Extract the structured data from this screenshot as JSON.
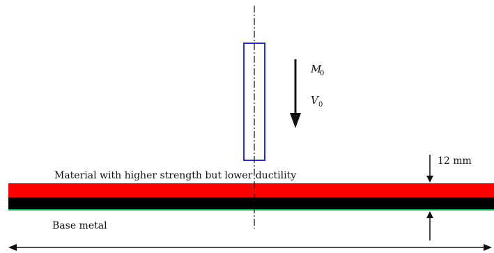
{
  "labels": {
    "upper_layer": "Material with higher strength but lower ductility",
    "base_metal": "Base metal",
    "thickness": "12 mm",
    "moment_symbol": "M",
    "moment_subscript": "0",
    "shear_symbol": "V",
    "shear_subscript": "0"
  },
  "colors": {
    "upper_layer": "#ff0000",
    "lower_layer": "#000000",
    "interface_line": "#00b050",
    "tool_outline": "#2a2ae6",
    "lines": "#111111"
  }
}
